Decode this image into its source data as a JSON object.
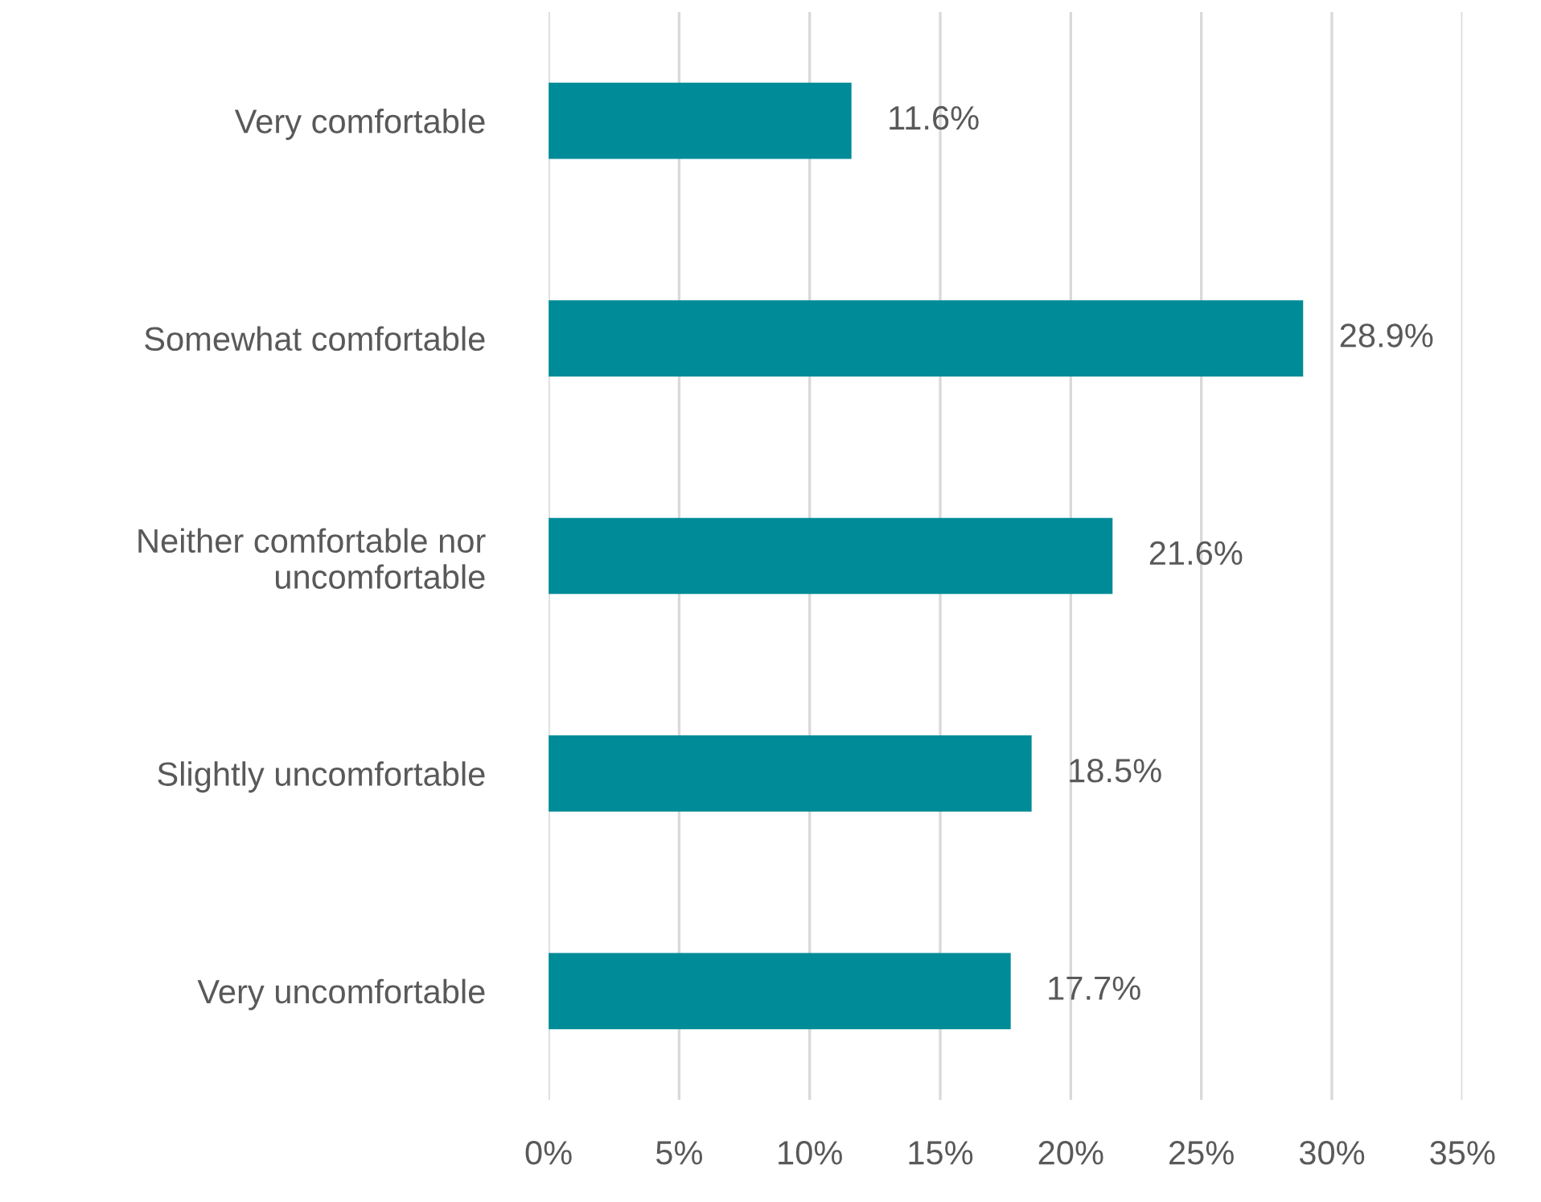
{
  "chart_data": {
    "type": "bar",
    "orientation": "horizontal",
    "categories": [
      "Very comfortable",
      "Somewhat comfortable",
      "Neither comfortable nor\nuncomfortable",
      "Slightly uncomfortable",
      "Very uncomfortable"
    ],
    "values": [
      11.6,
      28.9,
      21.6,
      18.5,
      17.7
    ],
    "value_labels": [
      "11.6%",
      "28.9%",
      "21.6%",
      "18.5%",
      "17.7%"
    ],
    "color": "#008b99",
    "xlim": [
      0,
      35
    ],
    "xticks": [
      {
        "value": 0,
        "label": "0%"
      },
      {
        "value": 5,
        "label": "5%"
      },
      {
        "value": 10,
        "label": "10%"
      },
      {
        "value": 15,
        "label": "15%"
      },
      {
        "value": 20,
        "label": "20%"
      },
      {
        "value": 25,
        "label": "25%"
      },
      {
        "value": 30,
        "label": "30%"
      },
      {
        "value": 35,
        "label": "35%"
      }
    ],
    "grid": "x",
    "legend": false
  }
}
